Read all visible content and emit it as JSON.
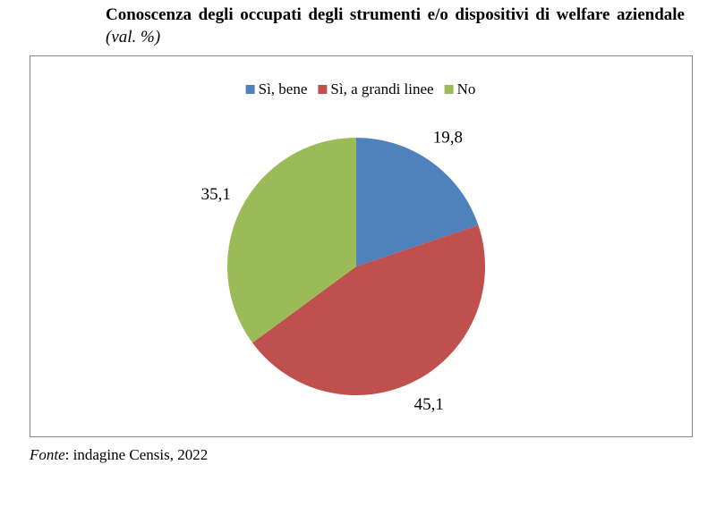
{
  "chart_data": {
    "type": "pie",
    "title": "Conoscenza degli occupati degli strumenti e/o dispositivi di welfare aziendale",
    "subtitle": "(val. %)",
    "categories": [
      "Sì, bene",
      "Sì, a grandi linee",
      "No"
    ],
    "values": [
      19.8,
      45.1,
      35.1
    ],
    "value_labels": [
      "19,8",
      "45,1",
      "35,1"
    ],
    "colors": [
      "#4f81bd",
      "#c0504d",
      "#9bbb59"
    ],
    "legend": "top",
    "source_label": "Fonte",
    "source": ": indagine Censis, 2022"
  }
}
